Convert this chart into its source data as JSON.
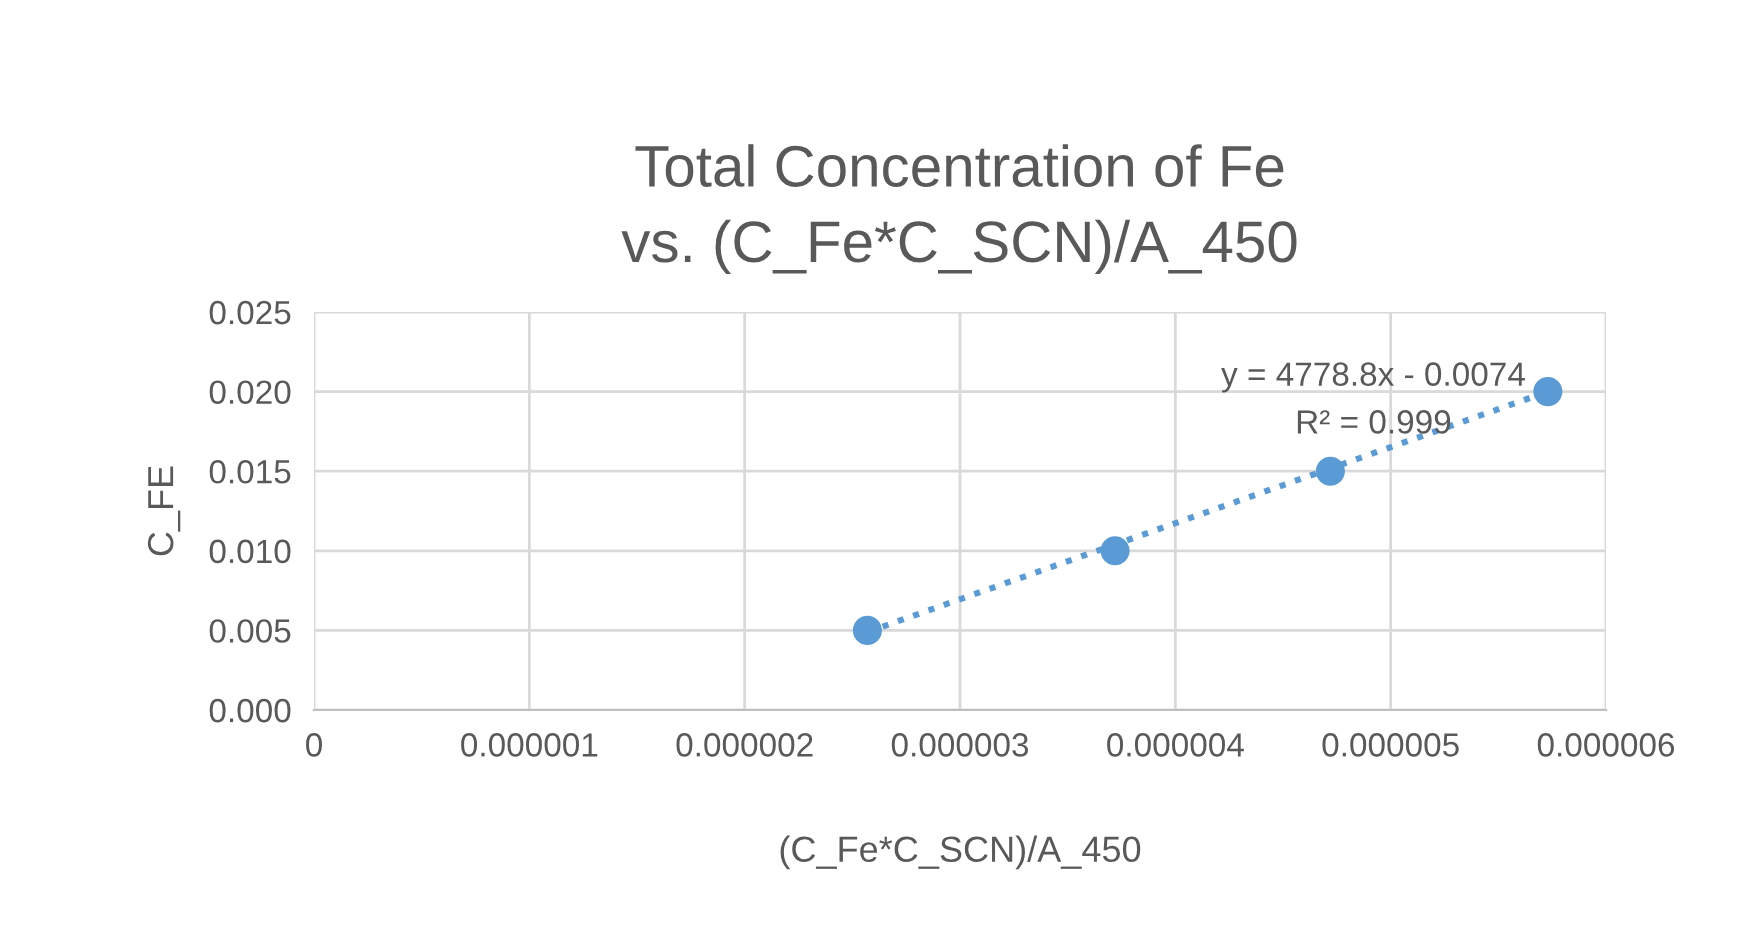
{
  "chart_data": {
    "type": "scatter",
    "title": "Total Concentration of Fe vs. (C_Fe*C_SCN)/A_450",
    "xlabel": "(C_Fe*C_SCN)/A_450",
    "ylabel": "C_FE",
    "series": [
      {
        "color": "#5b9bd5",
        "x": [
          2.57e-06,
          3.72e-06,
          4.72e-06,
          5.73e-06
        ],
        "values": [
          0.005,
          0.01,
          0.015,
          0.02
        ],
        "marker": "circle"
      },
      {
        "type": "line",
        "color": "#5b9bd5",
        "x": [
          2.57e-06,
          5.73e-06
        ],
        "values": [
          0.0049,
          0.02
        ],
        "line_style": "dotted",
        "marker": "none"
      }
    ],
    "annotations": [
      "y = 4778.8x - 0.0074",
      "R² = 0.999"
    ],
    "xlim": [
      0,
      6e-06
    ],
    "xticks": [
      0,
      {
        "value": 1e-06,
        "label": "0.000001"
      },
      {
        "value": 2e-06,
        "label": "0.000002"
      },
      {
        "value": 3e-06,
        "label": "0.000003"
      },
      {
        "value": 4e-06,
        "label": "0.000004"
      },
      {
        "value": 5e-06,
        "label": "0.000005"
      },
      {
        "value": 6e-06,
        "label": "0.000006"
      }
    ],
    "ylim": [
      0,
      0.025
    ],
    "yticks": [
      {
        "value": 0,
        "label": "0.000"
      },
      {
        "value": 0.005,
        "label": "0.005"
      },
      {
        "value": 0.01,
        "label": "0.010"
      },
      {
        "value": 0.015,
        "label": "0.015"
      },
      {
        "value": 0.02,
        "label": "0.020"
      },
      {
        "value": 0.025,
        "label": "0.025"
      }
    ],
    "grid": true,
    "legend": false
  }
}
